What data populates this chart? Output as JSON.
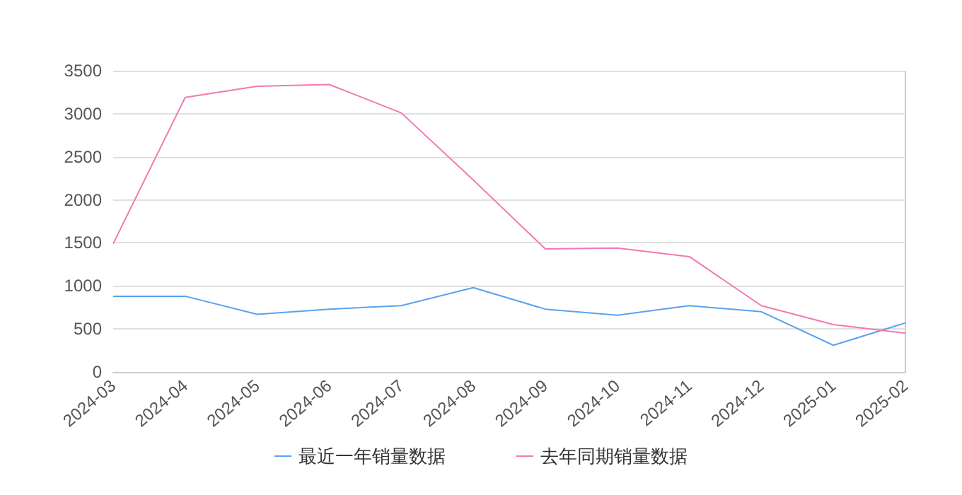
{
  "chart_data": {
    "type": "line",
    "categories": [
      "2024-03",
      "2024-04",
      "2024-05",
      "2024-06",
      "2024-07",
      "2024-08",
      "2024-09",
      "2024-10",
      "2024-11",
      "2024-12",
      "2025-01",
      "2025-02"
    ],
    "series": [
      {
        "name": "最近一年销量数据",
        "color": "#5aa2ee",
        "values": [
          880,
          880,
          670,
          730,
          770,
          980,
          730,
          660,
          770,
          700,
          310,
          570
        ]
      },
      {
        "name": "去年同期销量数据",
        "color": "#f279b3",
        "values": [
          1490,
          3190,
          3320,
          3340,
          3010,
          2230,
          1430,
          1440,
          1340,
          770,
          550,
          450
        ]
      }
    ],
    "ylim": [
      0,
      3500
    ],
    "yticks": [
      0,
      500,
      1000,
      1500,
      2000,
      2500,
      3000,
      3500
    ],
    "grid": "y",
    "legend": "bottom",
    "marker": "none",
    "line_style": "solid"
  }
}
